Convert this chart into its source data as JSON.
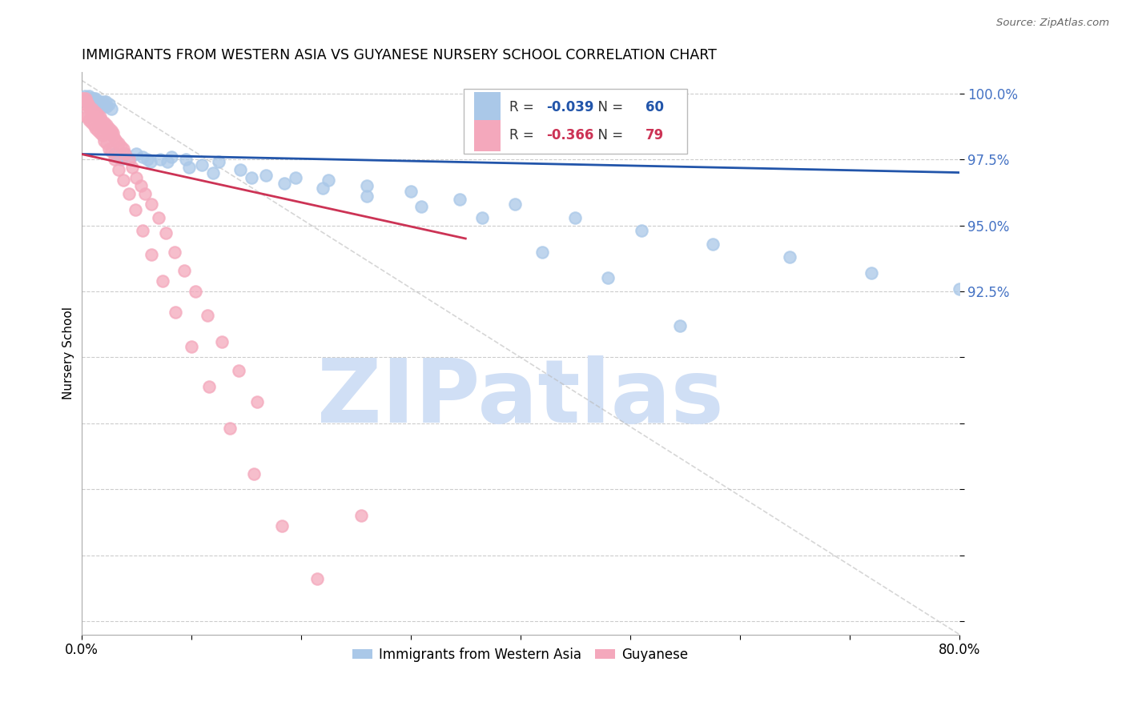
{
  "title": "IMMIGRANTS FROM WESTERN ASIA VS GUYANESE NURSERY SCHOOL CORRELATION CHART",
  "source": "Source: ZipAtlas.com",
  "ylabel": "Nursery School",
  "xlim": [
    0.0,
    0.8
  ],
  "ylim": [
    0.795,
    1.008
  ],
  "ytick_vals": [
    0.8,
    0.825,
    0.85,
    0.875,
    0.9,
    0.925,
    0.95,
    0.975,
    1.0
  ],
  "ytick_labels": [
    "",
    "",
    "",
    "",
    "",
    "92.5%",
    "95.0%",
    "97.5%",
    "100.0%"
  ],
  "xtick_vals": [
    0.0,
    0.1,
    0.2,
    0.3,
    0.4,
    0.5,
    0.6,
    0.7,
    0.8
  ],
  "xtick_labels": [
    "0.0%",
    "",
    "",
    "",
    "",
    "",
    "",
    "",
    "80.0%"
  ],
  "blue_R": "-0.039",
  "blue_N": "60",
  "pink_R": "-0.366",
  "pink_N": "79",
  "blue_color": "#aac8e8",
  "pink_color": "#f4a8bc",
  "blue_line_color": "#2255aa",
  "pink_line_color": "#cc3355",
  "diagonal_color": "#bbbbbb",
  "watermark": "ZIPatlas",
  "watermark_color": "#d0dff5",
  "blue_x": [
    0.003,
    0.005,
    0.007,
    0.008,
    0.01,
    0.011,
    0.012,
    0.013,
    0.014,
    0.015,
    0.016,
    0.017,
    0.018,
    0.019,
    0.02,
    0.021,
    0.022,
    0.023,
    0.025,
    0.027,
    0.03,
    0.033,
    0.036,
    0.04,
    0.044,
    0.05,
    0.056,
    0.063,
    0.072,
    0.082,
    0.095,
    0.11,
    0.125,
    0.145,
    0.168,
    0.195,
    0.225,
    0.26,
    0.3,
    0.345,
    0.395,
    0.45,
    0.51,
    0.575,
    0.645,
    0.72,
    0.8,
    0.06,
    0.078,
    0.098,
    0.12,
    0.155,
    0.185,
    0.22,
    0.26,
    0.31,
    0.365,
    0.42,
    0.48,
    0.545
  ],
  "blue_y": [
    0.999,
    0.997,
    0.999,
    0.998,
    0.998,
    0.998,
    0.997,
    0.998,
    0.996,
    0.997,
    0.997,
    0.996,
    0.996,
    0.997,
    0.995,
    0.996,
    0.997,
    0.995,
    0.996,
    0.994,
    0.977,
    0.976,
    0.975,
    0.977,
    0.975,
    0.977,
    0.976,
    0.974,
    0.975,
    0.976,
    0.975,
    0.973,
    0.974,
    0.971,
    0.969,
    0.968,
    0.967,
    0.965,
    0.963,
    0.96,
    0.958,
    0.953,
    0.948,
    0.943,
    0.938,
    0.932,
    0.926,
    0.975,
    0.974,
    0.972,
    0.97,
    0.968,
    0.966,
    0.964,
    0.961,
    0.957,
    0.953,
    0.94,
    0.93,
    0.912
  ],
  "pink_x": [
    0.001,
    0.002,
    0.003,
    0.004,
    0.005,
    0.006,
    0.007,
    0.008,
    0.009,
    0.01,
    0.011,
    0.012,
    0.013,
    0.014,
    0.015,
    0.016,
    0.017,
    0.018,
    0.019,
    0.02,
    0.021,
    0.022,
    0.023,
    0.024,
    0.025,
    0.026,
    0.027,
    0.028,
    0.029,
    0.03,
    0.032,
    0.034,
    0.036,
    0.038,
    0.04,
    0.043,
    0.046,
    0.05,
    0.054,
    0.058,
    0.064,
    0.07,
    0.077,
    0.085,
    0.094,
    0.104,
    0.115,
    0.128,
    0.143,
    0.16,
    0.003,
    0.005,
    0.007,
    0.009,
    0.011,
    0.013,
    0.015,
    0.017,
    0.019,
    0.021,
    0.023,
    0.025,
    0.027,
    0.03,
    0.034,
    0.038,
    0.043,
    0.049,
    0.056,
    0.064,
    0.074,
    0.086,
    0.1,
    0.116,
    0.135,
    0.157,
    0.183,
    0.215,
    0.255
  ],
  "pink_y": [
    0.998,
    0.998,
    0.996,
    0.998,
    0.997,
    0.996,
    0.995,
    0.994,
    0.993,
    0.994,
    0.993,
    0.992,
    0.993,
    0.991,
    0.992,
    0.99,
    0.991,
    0.99,
    0.989,
    0.988,
    0.989,
    0.987,
    0.988,
    0.986,
    0.987,
    0.985,
    0.986,
    0.984,
    0.985,
    0.983,
    0.982,
    0.981,
    0.98,
    0.979,
    0.977,
    0.975,
    0.972,
    0.968,
    0.965,
    0.962,
    0.958,
    0.953,
    0.947,
    0.94,
    0.933,
    0.925,
    0.916,
    0.906,
    0.895,
    0.883,
    0.992,
    0.991,
    0.99,
    0.989,
    0.988,
    0.987,
    0.986,
    0.985,
    0.984,
    0.982,
    0.981,
    0.979,
    0.978,
    0.975,
    0.971,
    0.967,
    0.962,
    0.956,
    0.948,
    0.939,
    0.929,
    0.917,
    0.904,
    0.889,
    0.873,
    0.856,
    0.836,
    0.816,
    0.84
  ]
}
